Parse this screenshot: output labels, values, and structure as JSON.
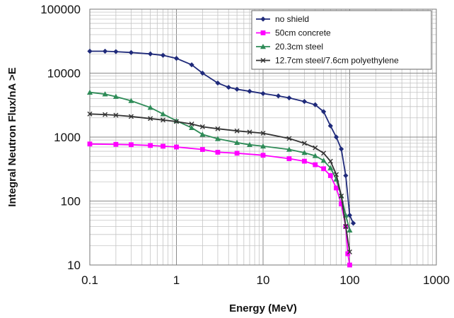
{
  "chart_data": {
    "type": "line",
    "title": "",
    "xlabel": "Energy (MeV)",
    "ylabel": "Integral Neutron Flux/nA >E",
    "x_scale": "log",
    "y_scale": "log",
    "xlim": [
      0.1,
      1000
    ],
    "ylim": [
      10,
      100000
    ],
    "grid": true,
    "legend_position": "top-right",
    "x_ticks": [
      "0.1",
      "1",
      "10",
      "100",
      "1000"
    ],
    "y_ticks": [
      "10",
      "100",
      "1000",
      "10000",
      "100000"
    ],
    "series": [
      {
        "name": "no shield",
        "color": "#1f2a7a",
        "marker": "diamond",
        "x": [
          0.1,
          0.15,
          0.2,
          0.3,
          0.5,
          0.7,
          1,
          1.5,
          2,
          3,
          4,
          5,
          7,
          10,
          15,
          20,
          30,
          40,
          50,
          60,
          70,
          80,
          90,
          100,
          110
        ],
        "y": [
          22000,
          22000,
          21700,
          21000,
          20000,
          19000,
          17000,
          13500,
          10000,
          7000,
          6000,
          5600,
          5200,
          4800,
          4400,
          4100,
          3600,
          3200,
          2500,
          1500,
          1000,
          650,
          250,
          60,
          45
        ]
      },
      {
        "name": "50cm concrete",
        "color": "#ff00ff",
        "marker": "square",
        "x": [
          0.1,
          0.2,
          0.3,
          0.5,
          0.7,
          1,
          2,
          3,
          5,
          10,
          20,
          30,
          40,
          50,
          60,
          70,
          80,
          90,
          95,
          100
        ],
        "y": [
          780,
          770,
          760,
          740,
          720,
          700,
          640,
          580,
          560,
          520,
          460,
          420,
          370,
          320,
          250,
          160,
          90,
          40,
          15,
          10
        ]
      },
      {
        "name": "20.3cm steel",
        "color": "#2e8b57",
        "marker": "triangle",
        "x": [
          0.1,
          0.15,
          0.2,
          0.3,
          0.5,
          0.7,
          1,
          1.5,
          2,
          3,
          5,
          7,
          10,
          20,
          30,
          40,
          50,
          60,
          70,
          80,
          90,
          100
        ],
        "y": [
          5000,
          4700,
          4300,
          3700,
          2900,
          2300,
          1800,
          1400,
          1100,
          940,
          820,
          760,
          720,
          640,
          570,
          510,
          430,
          330,
          220,
          120,
          60,
          35
        ]
      },
      {
        "name": "12.7cm steel/7.6cm polyethylene",
        "color": "#333333",
        "marker": "x",
        "x": [
          0.1,
          0.15,
          0.2,
          0.3,
          0.5,
          0.7,
          1,
          1.5,
          2,
          3,
          5,
          7,
          10,
          20,
          30,
          40,
          50,
          60,
          70,
          80,
          90,
          100
        ],
        "y": [
          2300,
          2250,
          2200,
          2100,
          1950,
          1850,
          1750,
          1600,
          1450,
          1350,
          1250,
          1200,
          1150,
          950,
          800,
          680,
          560,
          420,
          260,
          120,
          40,
          16
        ]
      }
    ]
  }
}
